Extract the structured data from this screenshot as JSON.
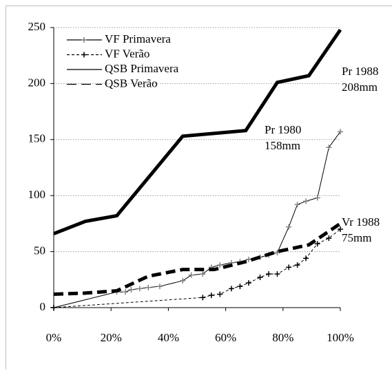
{
  "chart_data": {
    "type": "line",
    "series": [
      {
        "name": "VF Primavera",
        "color": "#000000",
        "marker_color": "#808080",
        "style": "solid",
        "width": 1,
        "marker": true,
        "x": [
          0,
          22,
          25,
          27,
          30,
          33,
          37,
          45,
          48,
          52,
          55,
          58,
          62,
          65,
          68,
          72,
          75,
          78,
          82,
          85,
          88,
          92,
          96,
          100
        ],
        "values": [
          0,
          14,
          14,
          16,
          17,
          18,
          19,
          24,
          29,
          30,
          36,
          38,
          40,
          41,
          43,
          45,
          47,
          49,
          72,
          92,
          95,
          98,
          143,
          157
        ]
      },
      {
        "name": "VF Verão",
        "color": "#000000",
        "marker_color": "#000000",
        "style": "dashed",
        "width": 1,
        "marker": true,
        "x": [
          0,
          52,
          55,
          58,
          62,
          65,
          68,
          72,
          75,
          78,
          82,
          85,
          88,
          92,
          96,
          100
        ],
        "values": [
          0,
          9,
          11,
          12,
          17,
          19,
          22,
          27,
          30,
          30,
          36,
          38,
          44,
          57,
          62,
          70
        ]
      },
      {
        "name": "QSB Primavera",
        "color": "#000000",
        "style": "solid",
        "width": 5,
        "marker": false,
        "x": [
          0,
          11,
          22,
          45,
          67,
          78,
          89,
          100
        ],
        "values": [
          66,
          77,
          82,
          153,
          158,
          201,
          207,
          248
        ]
      },
      {
        "name": "QSB Verão",
        "color": "#000000",
        "style": "dashed",
        "width": 5,
        "marker": false,
        "x": [
          0,
          11,
          22,
          33,
          45,
          56,
          67,
          78,
          89,
          100
        ],
        "values": [
          12,
          13,
          15,
          28,
          34,
          34,
          41,
          50,
          56,
          75
        ]
      }
    ],
    "xlim": [
      0,
      100
    ],
    "xticks": [
      {
        "value": 0,
        "label": "0%"
      },
      {
        "value": 20,
        "label": "20%"
      },
      {
        "value": 40,
        "label": "40%"
      },
      {
        "value": 60,
        "label": "60%"
      },
      {
        "value": 80,
        "label": "80%"
      },
      {
        "value": 100,
        "label": "100%"
      }
    ],
    "ylim": [
      0,
      250
    ],
    "yticks": [
      0,
      50,
      100,
      150,
      200,
      250
    ],
    "grid": true,
    "legend": "upper left",
    "annotations": [
      {
        "lines": [
          "Pr 1988",
          "208mm"
        ],
        "x": 100,
        "y": 208
      },
      {
        "lines": [
          "Pr 1980",
          "158mm"
        ],
        "x": 80,
        "y": 158
      },
      {
        "lines": [
          "Vr 1988",
          "75mm"
        ],
        "x": 100,
        "y": 75
      }
    ]
  }
}
